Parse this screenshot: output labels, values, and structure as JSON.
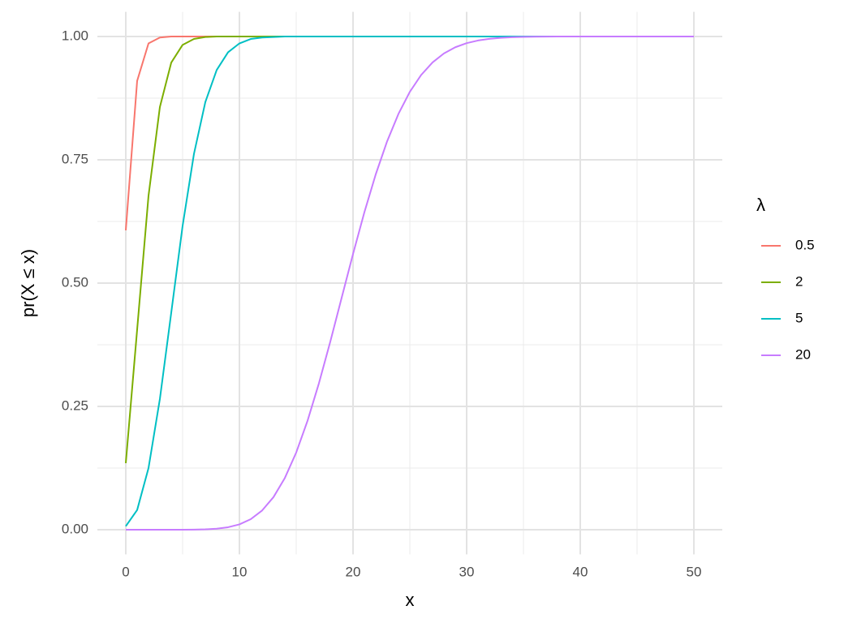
{
  "chart_data": {
    "type": "line",
    "x_label": "x",
    "y_label": "pr(X ≤ x)",
    "legend_title": "λ",
    "legend_position": "right",
    "grid": true,
    "xlim": [
      -2.5,
      52.5
    ],
    "ylim": [
      -0.05,
      1.05
    ],
    "xticks": [
      0,
      10,
      20,
      30,
      40,
      50
    ],
    "yticks": [
      {
        "value": 0,
        "label": "0.00"
      },
      {
        "value": 0.25,
        "label": "0.25"
      },
      {
        "value": 0.5,
        "label": "0.50"
      },
      {
        "value": 0.75,
        "label": "0.75"
      },
      {
        "value": 1,
        "label": "1.00"
      }
    ],
    "x": [
      0,
      1,
      2,
      3,
      4,
      5,
      6,
      7,
      8,
      9,
      10,
      11,
      12,
      13,
      14,
      15,
      16,
      17,
      18,
      19,
      20,
      21,
      22,
      23,
      24,
      25,
      26,
      27,
      28,
      29,
      30,
      31,
      32,
      33,
      34,
      35,
      36,
      37,
      38,
      39,
      40,
      41,
      42,
      43,
      44,
      45,
      46,
      47,
      48,
      49,
      50
    ],
    "series": [
      {
        "name": "0.5",
        "color": "#F8766D",
        "values": [
          0.607,
          0.91,
          0.986,
          0.998,
          1,
          1,
          1,
          1,
          1,
          1,
          1,
          1,
          1,
          1,
          1,
          1,
          1,
          1,
          1,
          1,
          1,
          1,
          1,
          1,
          1,
          1,
          1,
          1,
          1,
          1,
          1,
          1,
          1,
          1,
          1,
          1,
          1,
          1,
          1,
          1,
          1,
          1,
          1,
          1,
          1,
          1,
          1,
          1,
          1,
          1,
          1
        ]
      },
      {
        "name": "2",
        "color": "#7CAE00",
        "values": [
          0.135,
          0.406,
          0.677,
          0.857,
          0.947,
          0.983,
          0.995,
          0.999,
          1,
          1,
          1,
          1,
          1,
          1,
          1,
          1,
          1,
          1,
          1,
          1,
          1,
          1,
          1,
          1,
          1,
          1,
          1,
          1,
          1,
          1,
          1,
          1,
          1,
          1,
          1,
          1,
          1,
          1,
          1,
          1,
          1,
          1,
          1,
          1,
          1,
          1,
          1,
          1,
          1,
          1,
          1
        ]
      },
      {
        "name": "5",
        "color": "#00BFC4",
        "values": [
          0.007,
          0.04,
          0.125,
          0.265,
          0.44,
          0.616,
          0.762,
          0.867,
          0.932,
          0.968,
          0.986,
          0.995,
          0.998,
          0.999,
          1,
          1,
          1,
          1,
          1,
          1,
          1,
          1,
          1,
          1,
          1,
          1,
          1,
          1,
          1,
          1,
          1,
          1,
          1,
          1,
          1,
          1,
          1,
          1,
          1,
          1,
          1,
          1,
          1,
          1,
          1,
          1,
          1,
          1,
          1,
          1,
          1
        ]
      },
      {
        "name": "20",
        "color": "#C77CFF",
        "values": [
          0,
          0,
          0,
          0,
          0,
          0,
          0.0003,
          0.0008,
          0.0021,
          0.005,
          0.0108,
          0.0214,
          0.039,
          0.0661,
          0.1049,
          0.1565,
          0.2211,
          0.297,
          0.3814,
          0.4703,
          0.5591,
          0.6437,
          0.7206,
          0.7875,
          0.8432,
          0.8878,
          0.9221,
          0.9475,
          0.9657,
          0.9782,
          0.9865,
          0.9919,
          0.9953,
          0.9973,
          0.9985,
          0.9992,
          0.9996,
          0.9998,
          0.9999,
          1,
          1,
          1,
          1,
          1,
          1,
          1,
          1,
          1,
          1,
          1,
          1
        ]
      }
    ]
  }
}
